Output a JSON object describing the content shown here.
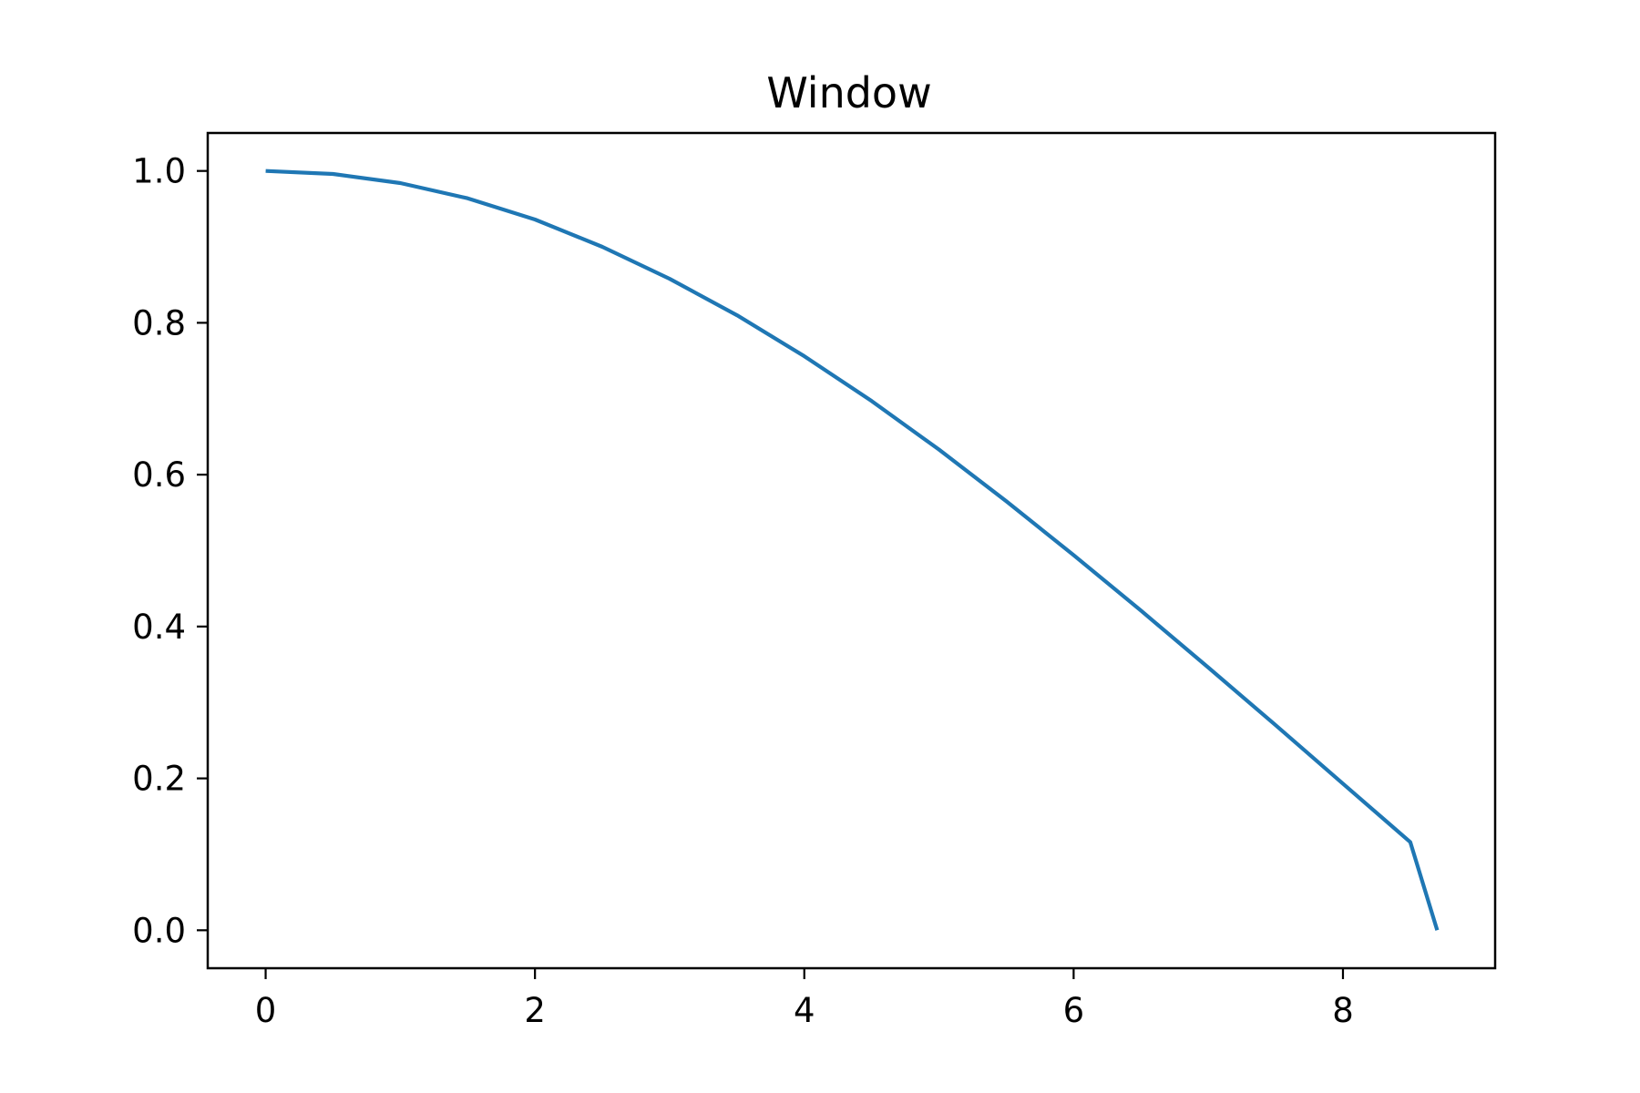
{
  "chart_data": {
    "type": "line",
    "title": "Window",
    "xlabel": "",
    "ylabel": "",
    "xlim": [
      -0.43,
      9.13
    ],
    "ylim": [
      -0.05,
      1.05
    ],
    "xticks": [
      {
        "value": 0,
        "label": "0"
      },
      {
        "value": 2,
        "label": "2"
      },
      {
        "value": 4,
        "label": "4"
      },
      {
        "value": 6,
        "label": "6"
      },
      {
        "value": 8,
        "label": "8"
      }
    ],
    "yticks": [
      {
        "value": 0.0,
        "label": "0.0"
      },
      {
        "value": 0.2,
        "label": "0.2"
      },
      {
        "value": 0.4,
        "label": "0.4"
      },
      {
        "value": 0.6,
        "label": "0.6"
      },
      {
        "value": 0.8,
        "label": "0.8"
      },
      {
        "value": 1.0,
        "label": "1.0"
      }
    ],
    "grid": false,
    "series": [
      {
        "color": "#1f77b4",
        "x": [
          0,
          0.5,
          1.0,
          1.5,
          2.0,
          2.5,
          3.0,
          3.5,
          4.0,
          4.5,
          5.0,
          5.5,
          6.0,
          6.5,
          7.0,
          7.5,
          8.0,
          8.5,
          8.7
        ],
        "y": [
          1.0,
          0.996,
          0.984,
          0.964,
          0.936,
          0.9,
          0.858,
          0.81,
          0.756,
          0.697,
          0.633,
          0.565,
          0.494,
          0.421,
          0.346,
          0.27,
          0.193,
          0.116,
          0.0
        ]
      }
    ]
  }
}
